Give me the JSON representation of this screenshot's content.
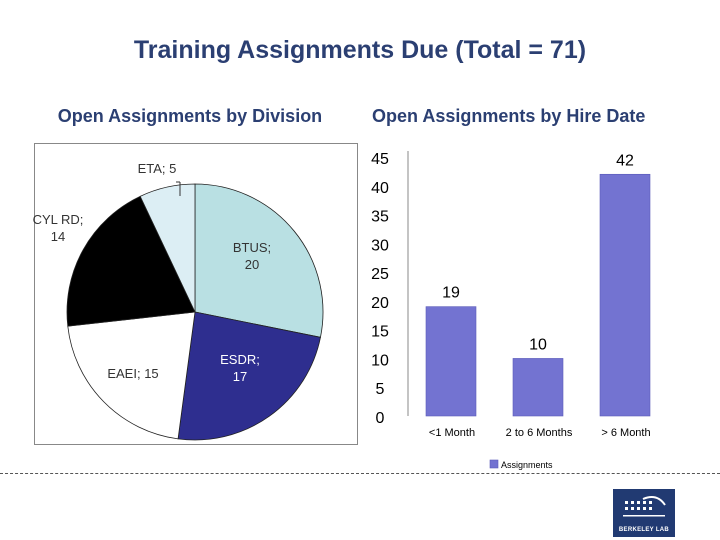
{
  "title": "Training Assignments Due (Total = 71)",
  "chart_data": [
    {
      "type": "pie",
      "title": "Open Assignments by Division",
      "slices": [
        {
          "label": "BTUS",
          "value": 20,
          "text": "BTUS; 20",
          "color": "#b9e0e3"
        },
        {
          "label": "ESDR",
          "value": 17,
          "text": "ESDR; 17",
          "color": "#2e2e8f"
        },
        {
          "label": "EAEI",
          "value": 15,
          "text": "EAEI; 15",
          "color": "#ffffff"
        },
        {
          "label": "CYL RD",
          "value": 14,
          "text": "CYL RD; 14",
          "color": "#000000"
        },
        {
          "label": "ETA",
          "value": 5,
          "text": "ETA; 5",
          "color": "#dceef4"
        }
      ]
    },
    {
      "type": "bar",
      "title": "Open Assignments by Hire Date",
      "categories": [
        "<1 Month",
        "2 to 6 Months",
        "> 6 Month"
      ],
      "series": [
        {
          "name": "Assignments",
          "values": [
            19,
            10,
            42
          ],
          "color": "#7373d1"
        }
      ],
      "ylim": [
        0,
        45
      ],
      "yticks": [
        "0",
        "5",
        "10",
        "15",
        "20",
        "25",
        "30",
        "35",
        "40",
        "45"
      ],
      "legend": "bottom"
    }
  ],
  "logo": {
    "text": "BERKELEY LAB"
  }
}
